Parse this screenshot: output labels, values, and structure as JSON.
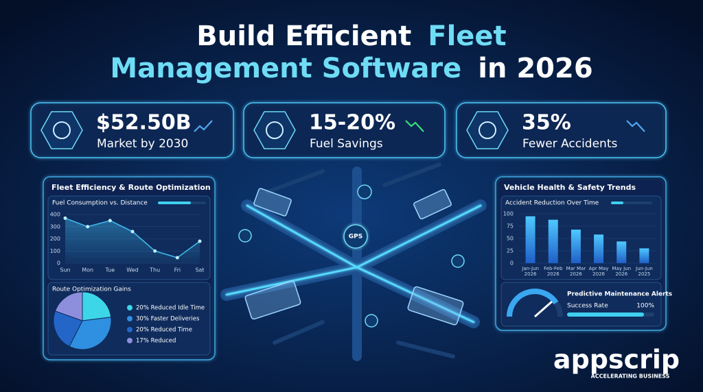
{
  "header": {
    "line1_white": "Build Efficient",
    "line1_accent": "Fleet",
    "line2_accent": "Management Software",
    "line2_white": "in 2026"
  },
  "stats": [
    {
      "value": "$52.50B",
      "label": "Market by 2030"
    },
    {
      "value": "15-20%",
      "label": "Fuel Savings"
    },
    {
      "value": "35%",
      "label": "Fewer Accidents"
    }
  ],
  "left_panel": {
    "title": "Fleet Efficiency & Route Optimization"
  },
  "right_panel": {
    "title": "Vehicle Health & Safety Trends"
  },
  "maintenance": {
    "title": "Predictive Maintenance Alerts",
    "label": "Success Rate",
    "value_label": "100%"
  },
  "map": {
    "gps_label": "GPS"
  },
  "brand": {
    "name": "appscrip",
    "tagline": "ACCELERATING BUSINESS"
  },
  "chart_data": [
    {
      "type": "line",
      "title": "Fuel Consumption vs. Distance",
      "categories": [
        "Sun",
        "Mon",
        "Tue",
        "Wed",
        "Thu",
        "Fri",
        "Sat"
      ],
      "values": [
        370,
        300,
        350,
        260,
        100,
        45,
        180
      ],
      "color": "#3fb6e8",
      "ylim": [
        0,
        400
      ],
      "yticks": [
        0,
        100,
        200,
        300,
        400
      ]
    },
    {
      "type": "pie",
      "title": "Route Optimization Gains",
      "series": [
        {
          "name": "20% Reduced Idle Time",
          "color": "#3dd6e8",
          "values": [
            20
          ]
        },
        {
          "name": "30% Faster Deliveries",
          "color": "#2f8fe0",
          "values": [
            30
          ]
        },
        {
          "name": "20% Reduced Time",
          "color": "#2466c8",
          "values": [
            20
          ]
        },
        {
          "name": "17% Reduced",
          "color": "#8e8fdc",
          "values": [
            17
          ]
        }
      ]
    },
    {
      "type": "bar",
      "title": "Accident Reduction Over Time",
      "categories": [
        "Jan-Jun 2026",
        "Feb-Feb 2026",
        "Mar Mar 2026",
        "Apr May 2026",
        "May Jun 2026",
        "Jun-Jun 2025"
      ],
      "values": [
        95,
        88,
        68,
        58,
        44,
        30
      ],
      "color": "#3aa8f0",
      "ylim": [
        0,
        100
      ],
      "yticks": [
        0,
        25,
        50,
        75,
        100
      ]
    }
  ]
}
